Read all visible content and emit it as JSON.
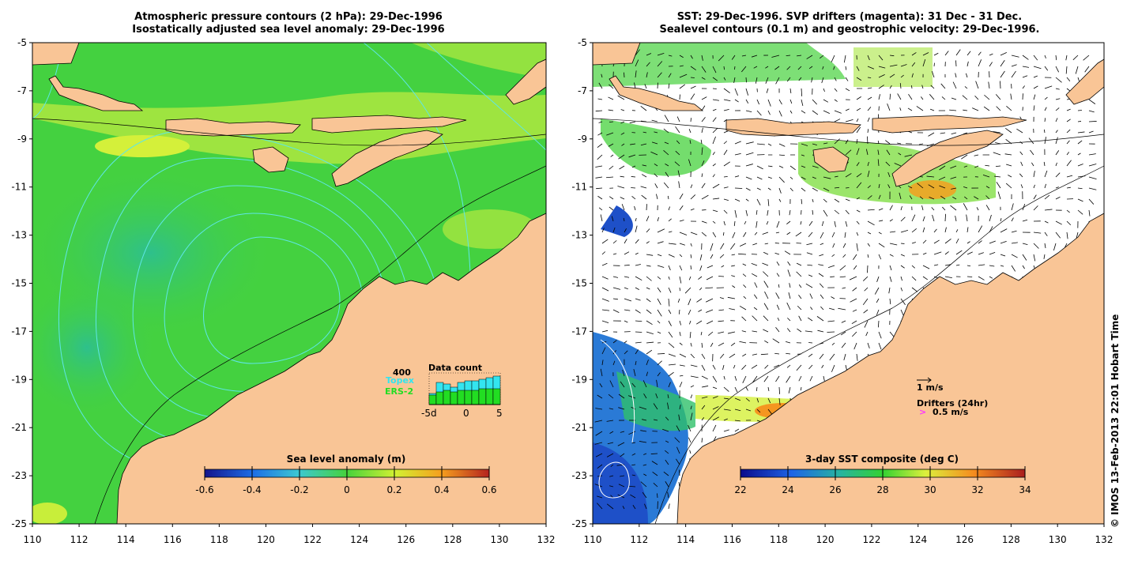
{
  "left_panel": {
    "title_line1": "Atmospheric pressure contours (2 hPa): 29-Dec-1996",
    "title_line2": "Isostatically adjusted sea level anomaly: 29-Dec-1996",
    "colorbar": {
      "title": "Sea level anomaly (m)",
      "ticks": [
        "-0.6",
        "-0.4",
        "-0.2",
        "0",
        "0.2",
        "0.4",
        "0.6"
      ],
      "range": [
        -0.6,
        0.6
      ]
    },
    "data_count": {
      "title": "Data count",
      "max_label": "400",
      "legend_topex": "Topex",
      "legend_ers2": "ERS-2",
      "x_ticks": [
        "-5d",
        "0",
        "5"
      ],
      "topex_color": "#33e5ef",
      "ers2_color": "#22dd22"
    }
  },
  "right_panel": {
    "title_line1": "SST: 29-Dec-1996. SVP drifters (magenta): 31 Dec - 31 Dec.",
    "title_line2": "Sealevel contours (0.1 m) and geostrophic velocity: 29-Dec-1996.",
    "colorbar": {
      "title": "3-day SST composite (deg C)",
      "ticks": [
        "22",
        "24",
        "26",
        "28",
        "30",
        "32",
        "34"
      ],
      "range": [
        22,
        34
      ]
    },
    "velocity_scale_label": "1 m/s",
    "drifters_label": "Drifters (24hr)",
    "drifter_speed_label": "0.5 m/s",
    "drifter_symbol": ">",
    "drifter_color": "#ff33ff"
  },
  "axes": {
    "lat_ticks": [
      "-5",
      "-7",
      "-9",
      "-11",
      "-13",
      "-15",
      "-17",
      "-19",
      "-21",
      "-23",
      "-25"
    ],
    "lon_ticks": [
      "110",
      "112",
      "114",
      "116",
      "118",
      "120",
      "122",
      "124",
      "126",
      "128",
      "130",
      "132"
    ]
  },
  "credit": "© IMOS 13-Feb-2013 22:01 Hobart Time",
  "colors": {
    "land": "#f9c596",
    "ocean_green": "#44d140",
    "contour_cyan": "#5ee6e6"
  }
}
